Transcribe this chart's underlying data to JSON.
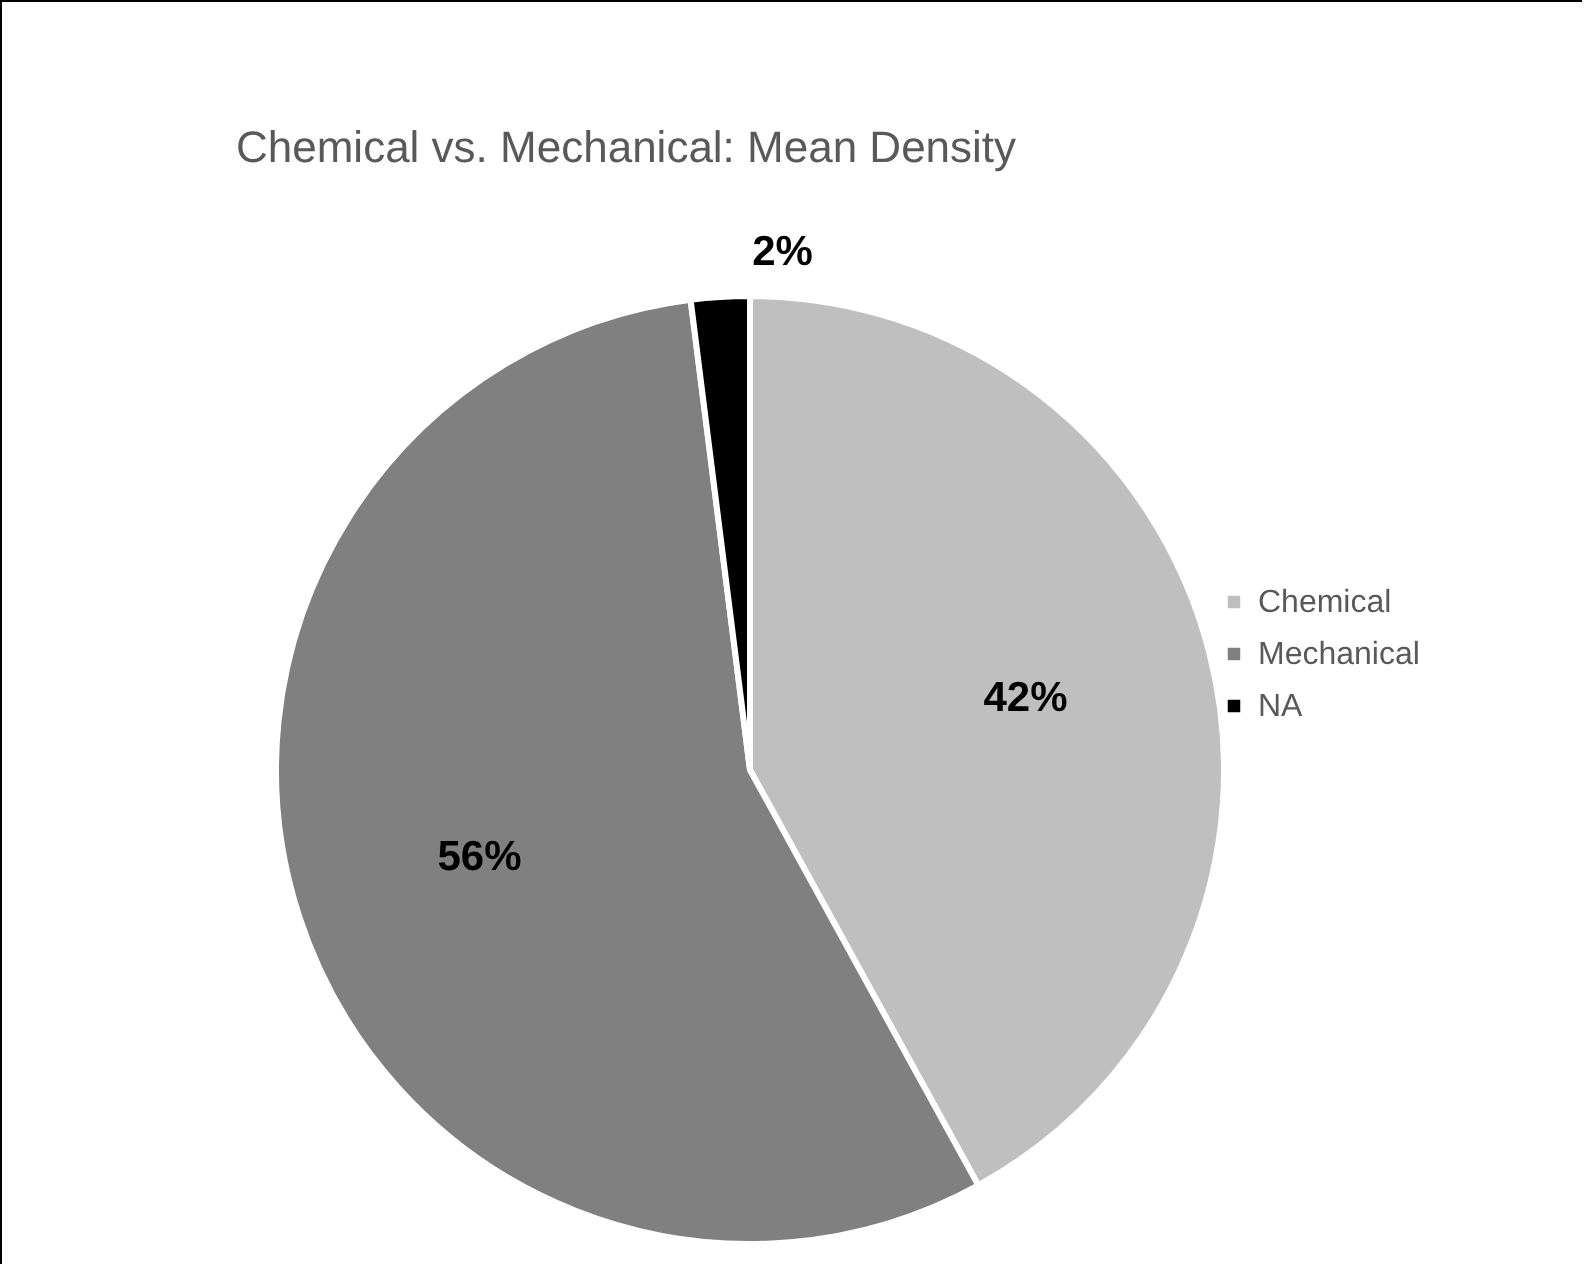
{
  "chart_data": {
    "type": "pie",
    "title": "Chemical vs. Mechanical: Mean Density",
    "categories": [
      "Chemical",
      "Mechanical",
      "NA"
    ],
    "values": [
      42,
      56,
      2
    ],
    "colors": [
      "#bfbfbf",
      "#808080",
      "#000000"
    ],
    "value_labels": [
      "42%",
      "56%",
      "2%"
    ],
    "legend": "right"
  }
}
